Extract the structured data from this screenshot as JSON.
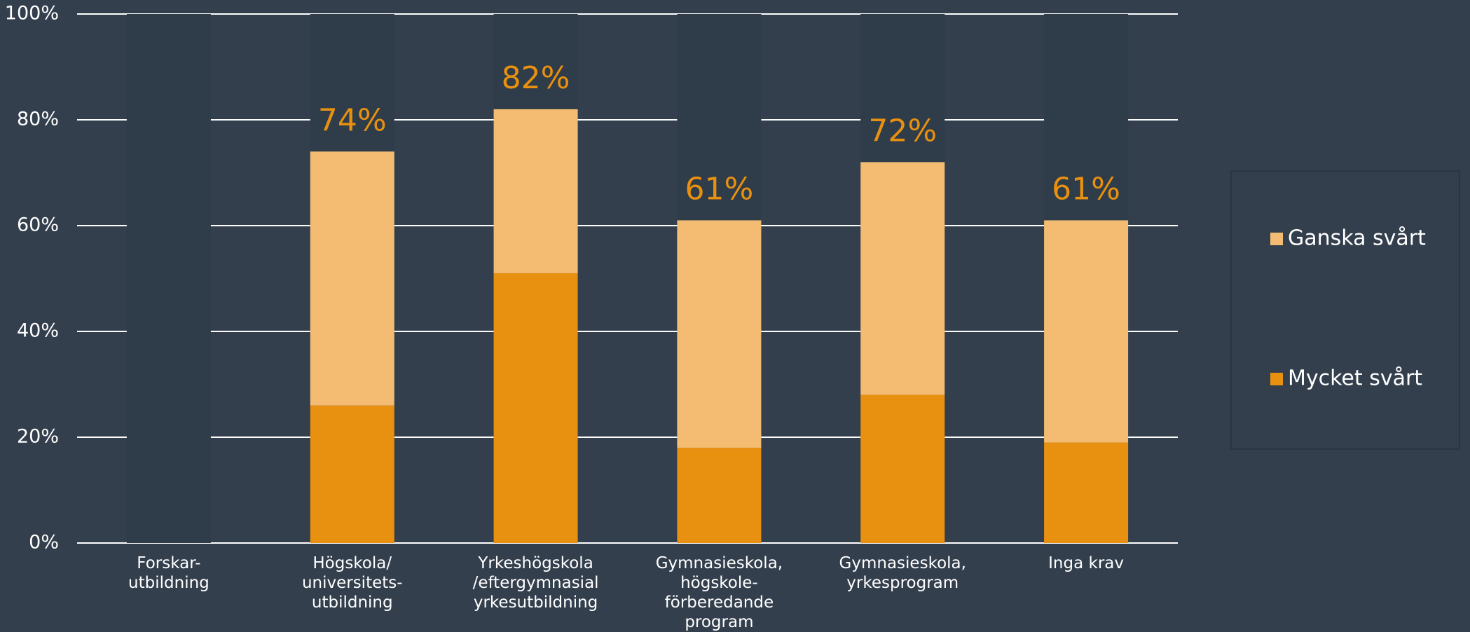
{
  "chart_data": {
    "type": "stacked_bar",
    "categories": [
      [
        "Forskar-",
        "utbildning"
      ],
      [
        "Högskola/",
        "universitets-",
        "utbildning"
      ],
      [
        "Yrkeshögskola",
        "/eftergymnasial",
        "yrkesutbildning"
      ],
      [
        "Gymnasieskola,",
        "högskole-",
        "förberedande",
        "program"
      ],
      [
        "Gymnasieskola,",
        "yrkesprogram"
      ],
      [
        "Inga krav"
      ]
    ],
    "series": [
      {
        "name": "Mycket svårt",
        "color": "#e8900f",
        "values": [
          null,
          26,
          51,
          18,
          28,
          19
        ]
      },
      {
        "name": "Ganska svårt",
        "color": "#f4bc72",
        "values": [
          null,
          48,
          31,
          43,
          44,
          42
        ]
      }
    ],
    "totals": [
      null,
      74,
      82,
      61,
      72,
      61
    ],
    "total_labels": [
      null,
      "74%",
      "82%",
      "61%",
      "72%",
      "61%"
    ],
    "ylim": [
      0,
      100
    ],
    "yticks": [
      {
        "value": 0,
        "label": "0%"
      },
      {
        "value": 20,
        "label": "20%"
      },
      {
        "value": 40,
        "label": "40%"
      },
      {
        "value": 60,
        "label": "60%"
      },
      {
        "value": 80,
        "label": "80%"
      },
      {
        "value": 100,
        "label": "100%"
      }
    ],
    "grid": true,
    "legend": "right"
  }
}
